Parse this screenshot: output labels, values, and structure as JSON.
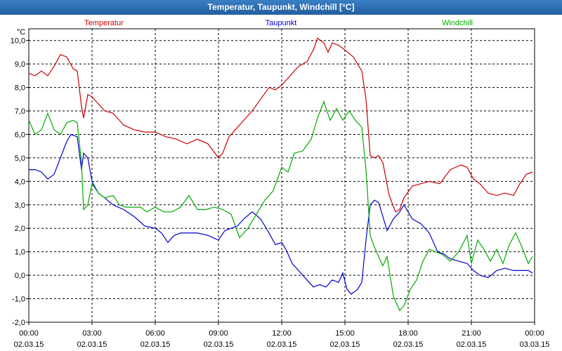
{
  "window": {
    "title": "Temperatur, Taupunkt, Windchill [°C]"
  },
  "chart_data": {
    "type": "line",
    "title": "Temperatur, Taupunkt, Windchill [°C]",
    "ylabel": "°C",
    "ylim": [
      -2.0,
      10.5
    ],
    "yticks": [
      "10,0",
      "9,0",
      "8,0",
      "7,0",
      "6,0",
      "5,0",
      "4,0",
      "3,0",
      "2,0",
      "1,0",
      "0,0",
      "-1,0",
      "-2,0"
    ],
    "ytick_values": [
      10,
      9,
      8,
      7,
      6,
      5,
      4,
      3,
      2,
      1,
      0,
      -1,
      -2
    ],
    "xlim_hours": [
      0,
      24
    ],
    "xticks": [
      {
        "time": "00:00",
        "date": "02.03.15"
      },
      {
        "time": "03:00",
        "date": "02.03.15"
      },
      {
        "time": "06:00",
        "date": "02.03.15"
      },
      {
        "time": "09:00",
        "date": "02.03.15"
      },
      {
        "time": "12:00",
        "date": "02.03.15"
      },
      {
        "time": "15:00",
        "date": "02.03.15"
      },
      {
        "time": "18:00",
        "date": "02.03.15"
      },
      {
        "time": "21:00",
        "date": "02.03.15"
      },
      {
        "time": "00:00",
        "date": "03.03.15"
      }
    ],
    "grid": true,
    "series": [
      {
        "name": "Temperatur",
        "color": "#cc0000",
        "x": [
          0,
          0.3,
          0.6,
          0.9,
          1.2,
          1.5,
          1.8,
          2.1,
          2.3,
          2.5,
          2.6,
          2.7,
          2.8,
          3.0,
          3.3,
          3.6,
          4.0,
          4.5,
          5.0,
          5.5,
          6.0,
          6.5,
          7.0,
          7.5,
          8.0,
          8.5,
          9.0,
          9.2,
          9.5,
          9.8,
          10.2,
          10.6,
          11.0,
          11.4,
          11.7,
          12.0,
          12.4,
          12.8,
          13.2,
          13.5,
          13.7,
          14.0,
          14.2,
          14.4,
          14.7,
          15.0,
          15.4,
          15.8,
          16.0,
          16.2,
          16.4,
          16.6,
          16.8,
          17.1,
          17.4,
          17.6,
          17.8,
          18.2,
          18.6,
          19.0,
          19.5,
          20.0,
          20.5,
          20.8,
          21.1,
          21.4,
          21.8,
          22.2,
          22.6,
          23.0,
          23.3,
          23.6,
          23.9
        ],
        "values": [
          8.6,
          8.5,
          8.7,
          8.5,
          8.9,
          9.4,
          9.3,
          8.8,
          8.7,
          7.2,
          6.7,
          7.2,
          7.7,
          7.6,
          7.3,
          7.0,
          6.9,
          6.4,
          6.2,
          6.1,
          6.1,
          5.9,
          5.8,
          5.6,
          5.8,
          5.6,
          5.0,
          5.2,
          5.9,
          6.2,
          6.6,
          7.0,
          7.5,
          8.0,
          7.9,
          8.1,
          8.5,
          8.9,
          9.1,
          9.6,
          10.1,
          9.9,
          9.5,
          9.9,
          9.8,
          9.6,
          9.3,
          8.7,
          7.5,
          5.1,
          5.0,
          5.1,
          4.8,
          3.4,
          2.7,
          2.8,
          3.3,
          3.8,
          3.9,
          4.0,
          3.9,
          4.5,
          4.7,
          4.6,
          4.1,
          3.9,
          3.5,
          3.4,
          3.5,
          3.4,
          3.9,
          4.3,
          4.4
        ]
      },
      {
        "name": "Taupunkt",
        "color": "#0000cc",
        "x": [
          0,
          0.3,
          0.6,
          0.9,
          1.2,
          1.5,
          1.8,
          2.0,
          2.3,
          2.5,
          2.6,
          2.8,
          3.0,
          3.3,
          3.6,
          4.0,
          4.5,
          5.0,
          5.5,
          6.0,
          6.3,
          6.6,
          6.9,
          7.2,
          7.6,
          8.0,
          8.5,
          9.0,
          9.3,
          9.6,
          9.9,
          10.2,
          10.6,
          11.0,
          11.4,
          11.7,
          12.0,
          12.2,
          12.5,
          12.8,
          13.2,
          13.5,
          13.8,
          14.1,
          14.4,
          14.7,
          14.9,
          15.1,
          15.3,
          15.6,
          15.8,
          16.0,
          16.2,
          16.4,
          16.6,
          16.8,
          17.0,
          17.3,
          17.6,
          17.8,
          18.2,
          18.6,
          19.0,
          19.4,
          19.7,
          20.0,
          20.4,
          20.8,
          21.1,
          21.4,
          21.8,
          22.2,
          22.6,
          23.0,
          23.4,
          23.7,
          23.9
        ],
        "values": [
          4.5,
          4.5,
          4.4,
          4.1,
          4.3,
          5.0,
          5.7,
          6.0,
          5.9,
          4.5,
          5.2,
          5.0,
          4.0,
          3.5,
          3.3,
          3.0,
          2.8,
          2.5,
          2.1,
          2.0,
          1.8,
          1.4,
          1.7,
          1.8,
          1.8,
          1.8,
          1.7,
          1.5,
          1.9,
          2.0,
          2.1,
          2.4,
          2.7,
          2.4,
          1.8,
          1.3,
          1.4,
          1.1,
          0.5,
          0.2,
          -0.2,
          -0.5,
          -0.4,
          -0.5,
          -0.2,
          -0.3,
          0.1,
          -0.6,
          -0.8,
          -0.6,
          -0.3,
          1.5,
          3.0,
          3.2,
          3.1,
          2.5,
          1.9,
          2.4,
          2.7,
          3.0,
          2.4,
          2.2,
          1.8,
          1.0,
          0.9,
          0.7,
          0.6,
          0.5,
          0.2,
          0.0,
          -0.1,
          0.2,
          0.3,
          0.2,
          0.2,
          0.2,
          0.1
        ]
      },
      {
        "name": "Windchill",
        "color": "#00aa00",
        "x": [
          0,
          0.3,
          0.6,
          0.9,
          1.2,
          1.5,
          1.8,
          2.1,
          2.3,
          2.5,
          2.6,
          2.8,
          3.0,
          3.3,
          3.6,
          4.0,
          4.3,
          4.6,
          5.0,
          5.3,
          5.6,
          6.0,
          6.4,
          6.8,
          7.2,
          7.6,
          8.0,
          8.4,
          8.8,
          9.2,
          9.6,
          10.0,
          10.4,
          10.8,
          11.2,
          11.6,
          12.0,
          12.3,
          12.6,
          13.0,
          13.4,
          13.7,
          14.0,
          14.3,
          14.6,
          14.9,
          15.2,
          15.5,
          15.8,
          16.0,
          16.2,
          16.4,
          16.6,
          16.8,
          17.0,
          17.3,
          17.6,
          17.8,
          18.1,
          18.4,
          18.7,
          19.0,
          19.3,
          19.6,
          20.0,
          20.4,
          20.8,
          21.0,
          21.3,
          21.6,
          21.9,
          22.2,
          22.5,
          22.8,
          23.1,
          23.4,
          23.7,
          23.9
        ],
        "values": [
          6.6,
          6.0,
          6.2,
          6.9,
          6.2,
          6.0,
          6.5,
          6.6,
          6.5,
          4.8,
          2.8,
          3.0,
          3.9,
          3.5,
          3.3,
          3.4,
          3.0,
          2.9,
          2.9,
          2.9,
          2.7,
          2.9,
          2.7,
          2.7,
          2.9,
          3.4,
          2.8,
          2.8,
          2.9,
          2.8,
          2.6,
          1.6,
          2.0,
          2.6,
          3.2,
          3.6,
          4.6,
          4.4,
          5.2,
          5.3,
          5.8,
          6.7,
          7.4,
          6.6,
          7.1,
          6.6,
          7.0,
          6.6,
          6.3,
          4.5,
          1.7,
          1.2,
          0.8,
          0.4,
          0.8,
          -0.9,
          -1.5,
          -1.3,
          -0.6,
          -0.2,
          0.6,
          1.1,
          1.0,
          0.9,
          0.6,
          1.0,
          1.7,
          0.5,
          1.5,
          1.1,
          0.6,
          1.1,
          0.5,
          1.3,
          1.8,
          1.2,
          0.5,
          0.8
        ]
      }
    ]
  }
}
